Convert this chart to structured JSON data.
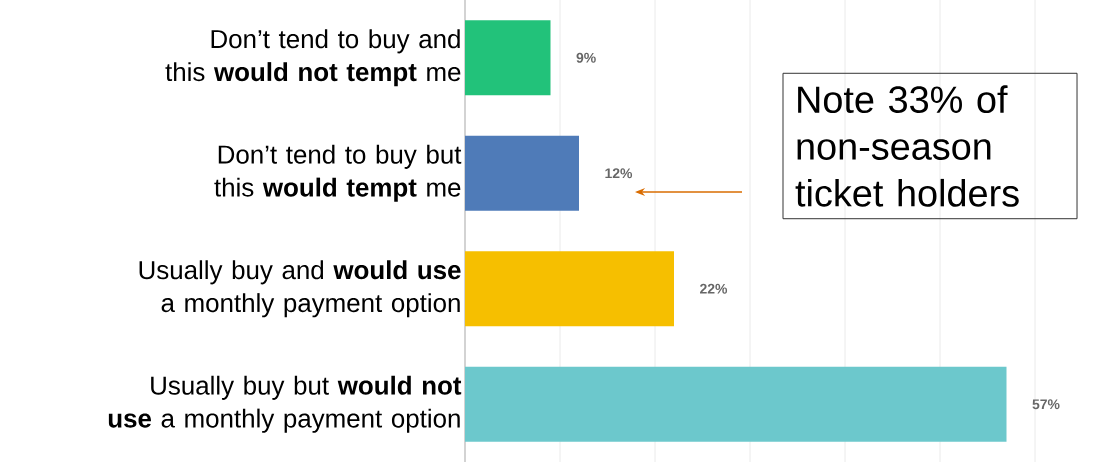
{
  "chart_data": {
    "type": "bar",
    "orientation": "horizontal",
    "categories": [
      "Don’t tend to buy and this **would not tempt** me",
      "Don’t tend to buy but this **would tempt** me",
      "Usually buy and **would use** a monthly payment option",
      "Usually buy but **would not use** a monthly payment option"
    ],
    "values": [
      9,
      12,
      22,
      57
    ],
    "colors": [
      "#22c27a",
      "#4f7bb8",
      "#f6bf00",
      "#6cc8cc"
    ],
    "value_labels": [
      "9%",
      "12%",
      "22%",
      "57%"
    ],
    "xlim": [
      0,
      60
    ],
    "xticks": [
      {
        "value": 0,
        "label": null
      },
      {
        "value": 10,
        "label": null
      },
      {
        "value": 20,
        "label": null
      },
      {
        "value": 30,
        "label": null
      },
      {
        "value": 40,
        "label": null
      },
      {
        "value": 50,
        "label": null
      },
      {
        "value": 60,
        "label": null
      }
    ],
    "tick_labels": "y",
    "grid": "x",
    "annotations": [
      "Note 33% of non-season ticket holders"
    ]
  }
}
